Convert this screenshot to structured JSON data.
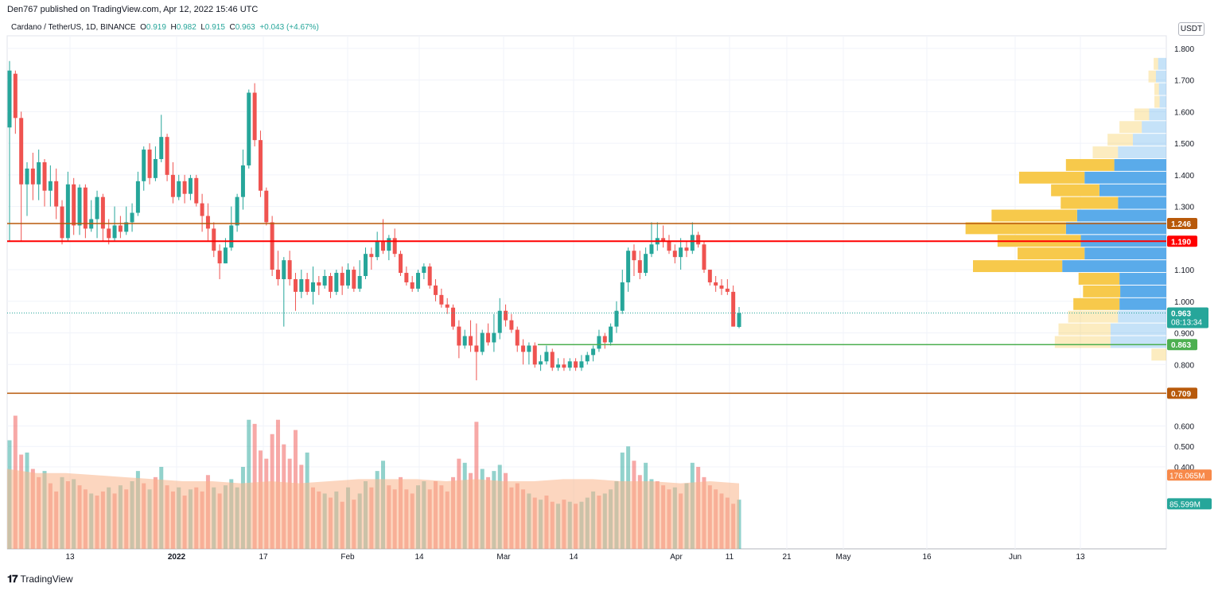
{
  "header": {
    "published": "Den767 published on TradingView.com, Apr 12, 2022 15:46 UTC",
    "symbol": "Cardano / TetherUS, 1D, BINANCE",
    "open_label": "O",
    "open": "0.919",
    "high_label": "H",
    "high": "0.982",
    "low_label": "L",
    "low": "0.915",
    "close_label": "C",
    "close": "0.963",
    "change": "+0.043 (+4.67%)"
  },
  "footer": {
    "brand": "TradingView"
  },
  "price_scale": {
    "unit": "USDT"
  },
  "colors": {
    "up": "#26a69a",
    "down": "#ef5350",
    "level_orange": "#b8590a",
    "level_red": "#ff0000",
    "level_green": "#4caf50",
    "vp_up": "#f7c94b",
    "vp_down": "#5aabea",
    "volume_ma": "#f9b58a"
  },
  "chart_data": {
    "type": "candlestick",
    "x_ticks": [
      "13",
      "2022",
      "17",
      "Feb",
      "14",
      "Mar",
      "14",
      "Apr",
      "11",
      "21",
      "May",
      "16",
      "Jun",
      "13"
    ],
    "y_ticks": [
      "1.800",
      "1.700",
      "1.600",
      "1.500",
      "1.400",
      "1.300",
      "1.100",
      "1.000",
      "0.900",
      "0.800"
    ],
    "volume_ticks": [
      "0.600",
      "0.500",
      "0.400"
    ],
    "ylim": [
      0.695,
      1.84
    ],
    "candles": [
      [
        1.55,
        1.73,
        1.76,
        1.19
      ],
      [
        1.72,
        1.58,
        1.73,
        1.53
      ],
      [
        1.58,
        1.37,
        1.6,
        1.19
      ],
      [
        1.37,
        1.42,
        1.44,
        1.27
      ],
      [
        1.42,
        1.37,
        1.47,
        1.32
      ],
      [
        1.37,
        1.44,
        1.48,
        1.32
      ],
      [
        1.44,
        1.35,
        1.45,
        1.3
      ],
      [
        1.35,
        1.38,
        1.43,
        1.3
      ],
      [
        1.38,
        1.3,
        1.42,
        1.26
      ],
      [
        1.3,
        1.2,
        1.32,
        1.18
      ],
      [
        1.2,
        1.37,
        1.41,
        1.19
      ],
      [
        1.37,
        1.24,
        1.39,
        1.21
      ],
      [
        1.24,
        1.36,
        1.37,
        1.21
      ],
      [
        1.36,
        1.23,
        1.37,
        1.2
      ],
      [
        1.23,
        1.26,
        1.32,
        1.22
      ],
      [
        1.26,
        1.33,
        1.35,
        1.2
      ],
      [
        1.33,
        1.23,
        1.34,
        1.19
      ],
      [
        1.23,
        1.2,
        1.26,
        1.18
      ],
      [
        1.2,
        1.24,
        1.3,
        1.19
      ],
      [
        1.24,
        1.22,
        1.27,
        1.2
      ],
      [
        1.22,
        1.25,
        1.3,
        1.21
      ],
      [
        1.25,
        1.28,
        1.31,
        1.22
      ],
      [
        1.28,
        1.38,
        1.41,
        1.27
      ],
      [
        1.38,
        1.48,
        1.49,
        1.35
      ],
      [
        1.48,
        1.39,
        1.5,
        1.37
      ],
      [
        1.39,
        1.45,
        1.49,
        1.38
      ],
      [
        1.45,
        1.52,
        1.59,
        1.44
      ],
      [
        1.52,
        1.4,
        1.53,
        1.38
      ],
      [
        1.4,
        1.33,
        1.44,
        1.31
      ],
      [
        1.33,
        1.38,
        1.4,
        1.32
      ],
      [
        1.38,
        1.34,
        1.4,
        1.31
      ],
      [
        1.34,
        1.39,
        1.4,
        1.32
      ],
      [
        1.39,
        1.31,
        1.4,
        1.3
      ],
      [
        1.31,
        1.27,
        1.34,
        1.22
      ],
      [
        1.27,
        1.23,
        1.31,
        1.19
      ],
      [
        1.23,
        1.16,
        1.25,
        1.14
      ],
      [
        1.16,
        1.12,
        1.18,
        1.07
      ],
      [
        1.12,
        1.17,
        1.2,
        1.12
      ],
      [
        1.17,
        1.24,
        1.3,
        1.16
      ],
      [
        1.24,
        1.33,
        1.34,
        1.22
      ],
      [
        1.33,
        1.43,
        1.48,
        1.29
      ],
      [
        1.43,
        1.66,
        1.67,
        1.42
      ],
      [
        1.66,
        1.51,
        1.69,
        1.49
      ],
      [
        1.51,
        1.35,
        1.54,
        1.33
      ],
      [
        1.35,
        1.25,
        1.36,
        1.24
      ],
      [
        1.25,
        1.1,
        1.27,
        1.08
      ],
      [
        1.1,
        1.07,
        1.16,
        1.05
      ],
      [
        1.07,
        1.13,
        1.14,
        0.92
      ],
      [
        1.13,
        1.07,
        1.16,
        1.05
      ],
      [
        1.07,
        1.03,
        1.09,
        0.97
      ],
      [
        1.03,
        1.07,
        1.1,
        1.01
      ],
      [
        1.07,
        1.03,
        1.09,
        1.02
      ],
      [
        1.03,
        1.06,
        1.11,
        0.99
      ],
      [
        1.06,
        1.05,
        1.08,
        1.02
      ],
      [
        1.05,
        1.08,
        1.1,
        1.04
      ],
      [
        1.08,
        1.03,
        1.09,
        1.01
      ],
      [
        1.03,
        1.09,
        1.1,
        1.02
      ],
      [
        1.09,
        1.05,
        1.11,
        1.02
      ],
      [
        1.05,
        1.1,
        1.12,
        1.04
      ],
      [
        1.1,
        1.04,
        1.11,
        1.03
      ],
      [
        1.04,
        1.08,
        1.13,
        1.03
      ],
      [
        1.08,
        1.15,
        1.17,
        1.07
      ],
      [
        1.15,
        1.14,
        1.17,
        1.1
      ],
      [
        1.14,
        1.19,
        1.22,
        1.13
      ],
      [
        1.19,
        1.16,
        1.26,
        1.15
      ],
      [
        1.16,
        1.2,
        1.21,
        1.13
      ],
      [
        1.2,
        1.15,
        1.23,
        1.14
      ],
      [
        1.15,
        1.09,
        1.16,
        1.08
      ],
      [
        1.09,
        1.06,
        1.11,
        1.05
      ],
      [
        1.06,
        1.04,
        1.08,
        1.03
      ],
      [
        1.04,
        1.09,
        1.1,
        1.03
      ],
      [
        1.09,
        1.11,
        1.12,
        1.07
      ],
      [
        1.11,
        1.05,
        1.12,
        1.04
      ],
      [
        1.05,
        1.02,
        1.07,
        1.0
      ],
      [
        1.02,
        0.99,
        1.04,
        0.98
      ],
      [
        0.99,
        0.98,
        1.01,
        0.96
      ],
      [
        0.98,
        0.92,
        0.99,
        0.91
      ],
      [
        0.92,
        0.86,
        0.94,
        0.82
      ],
      [
        0.86,
        0.89,
        0.91,
        0.85
      ],
      [
        0.89,
        0.86,
        0.94,
        0.84
      ],
      [
        0.86,
        0.84,
        0.93,
        0.75
      ],
      [
        0.84,
        0.9,
        0.91,
        0.83
      ],
      [
        0.9,
        0.87,
        0.93,
        0.86
      ],
      [
        0.87,
        0.9,
        0.96,
        0.84
      ],
      [
        0.9,
        0.97,
        1.01,
        0.88
      ],
      [
        0.97,
        0.94,
        0.99,
        0.92
      ],
      [
        0.94,
        0.91,
        0.96,
        0.9
      ],
      [
        0.91,
        0.86,
        0.92,
        0.84
      ],
      [
        0.86,
        0.84,
        0.88,
        0.8
      ],
      [
        0.84,
        0.86,
        0.87,
        0.8
      ],
      [
        0.86,
        0.8,
        0.87,
        0.79
      ],
      [
        0.8,
        0.81,
        0.83,
        0.78
      ],
      [
        0.81,
        0.84,
        0.86,
        0.8
      ],
      [
        0.84,
        0.79,
        0.85,
        0.78
      ],
      [
        0.79,
        0.8,
        0.82,
        0.78
      ],
      [
        0.8,
        0.79,
        0.82,
        0.78
      ],
      [
        0.79,
        0.81,
        0.82,
        0.78
      ],
      [
        0.81,
        0.79,
        0.82,
        0.78
      ],
      [
        0.79,
        0.81,
        0.83,
        0.78
      ],
      [
        0.81,
        0.83,
        0.84,
        0.8
      ],
      [
        0.83,
        0.85,
        0.86,
        0.81
      ],
      [
        0.85,
        0.89,
        0.91,
        0.84
      ],
      [
        0.89,
        0.87,
        0.9,
        0.85
      ],
      [
        0.87,
        0.92,
        0.93,
        0.86
      ],
      [
        0.92,
        0.97,
        1.0,
        0.9
      ],
      [
        0.97,
        1.06,
        1.1,
        0.96
      ],
      [
        1.06,
        1.16,
        1.17,
        1.03
      ],
      [
        1.16,
        1.13,
        1.18,
        1.08
      ],
      [
        1.13,
        1.09,
        1.16,
        1.07
      ],
      [
        1.09,
        1.15,
        1.17,
        1.08
      ],
      [
        1.15,
        1.18,
        1.25,
        1.14
      ],
      [
        1.18,
        1.2,
        1.25,
        1.16
      ],
      [
        1.2,
        1.19,
        1.24,
        1.17
      ],
      [
        1.19,
        1.16,
        1.21,
        1.15
      ],
      [
        1.16,
        1.14,
        1.18,
        1.12
      ],
      [
        1.14,
        1.17,
        1.2,
        1.1
      ],
      [
        1.17,
        1.16,
        1.19,
        1.14
      ],
      [
        1.16,
        1.21,
        1.25,
        1.15
      ],
      [
        1.21,
        1.18,
        1.22,
        1.17
      ],
      [
        1.18,
        1.1,
        1.19,
        1.09
      ],
      [
        1.1,
        1.06,
        1.1,
        1.05
      ],
      [
        1.06,
        1.05,
        1.08,
        1.03
      ],
      [
        1.05,
        1.04,
        1.07,
        1.02
      ],
      [
        1.04,
        1.03,
        1.07,
        1.02
      ],
      [
        1.03,
        0.92,
        1.05,
        0.92
      ],
      [
        0.919,
        0.963,
        0.982,
        0.915
      ]
    ],
    "volumes": [
      [
        0.53,
        1
      ],
      [
        0.65,
        0
      ],
      [
        0.46,
        0
      ],
      [
        0.47,
        1
      ],
      [
        0.39,
        0
      ],
      [
        0.35,
        0
      ],
      [
        0.38,
        1
      ],
      [
        0.32,
        0
      ],
      [
        0.28,
        0
      ],
      [
        0.35,
        1
      ],
      [
        0.33,
        0
      ],
      [
        0.34,
        1
      ],
      [
        0.31,
        0
      ],
      [
        0.29,
        0
      ],
      [
        0.27,
        1
      ],
      [
        0.26,
        0
      ],
      [
        0.28,
        0
      ],
      [
        0.3,
        1
      ],
      [
        0.27,
        0
      ],
      [
        0.31,
        1
      ],
      [
        0.29,
        0
      ],
      [
        0.33,
        1
      ],
      [
        0.38,
        1
      ],
      [
        0.32,
        0
      ],
      [
        0.29,
        1
      ],
      [
        0.35,
        0
      ],
      [
        0.4,
        1
      ],
      [
        0.31,
        0
      ],
      [
        0.28,
        0
      ],
      [
        0.3,
        1
      ],
      [
        0.26,
        0
      ],
      [
        0.29,
        1
      ],
      [
        0.3,
        0
      ],
      [
        0.28,
        0
      ],
      [
        0.36,
        0
      ],
      [
        0.3,
        1
      ],
      [
        0.27,
        0
      ],
      [
        0.31,
        1
      ],
      [
        0.34,
        1
      ],
      [
        0.3,
        1
      ],
      [
        0.4,
        1
      ],
      [
        0.63,
        1
      ],
      [
        0.61,
        0
      ],
      [
        0.48,
        0
      ],
      [
        0.44,
        0
      ],
      [
        0.56,
        0
      ],
      [
        0.63,
        0
      ],
      [
        0.51,
        0
      ],
      [
        0.44,
        0
      ],
      [
        0.58,
        0
      ],
      [
        0.41,
        0
      ],
      [
        0.47,
        1
      ],
      [
        0.3,
        0
      ],
      [
        0.28,
        0
      ],
      [
        0.27,
        1
      ],
      [
        0.25,
        0
      ],
      [
        0.28,
        1
      ],
      [
        0.23,
        0
      ],
      [
        0.3,
        1
      ],
      [
        0.24,
        0
      ],
      [
        0.27,
        1
      ],
      [
        0.33,
        1
      ],
      [
        0.3,
        0
      ],
      [
        0.38,
        1
      ],
      [
        0.43,
        1
      ],
      [
        0.31,
        0
      ],
      [
        0.29,
        0
      ],
      [
        0.35,
        0
      ],
      [
        0.29,
        0
      ],
      [
        0.27,
        0
      ],
      [
        0.31,
        1
      ],
      [
        0.33,
        1
      ],
      [
        0.29,
        0
      ],
      [
        0.33,
        0
      ],
      [
        0.31,
        0
      ],
      [
        0.28,
        0
      ],
      [
        0.35,
        0
      ],
      [
        0.44,
        0
      ],
      [
        0.42,
        1
      ],
      [
        0.37,
        0
      ],
      [
        0.62,
        0
      ],
      [
        0.39,
        1
      ],
      [
        0.35,
        0
      ],
      [
        0.38,
        1
      ],
      [
        0.41,
        1
      ],
      [
        0.37,
        0
      ],
      [
        0.3,
        0
      ],
      [
        0.32,
        0
      ],
      [
        0.29,
        0
      ],
      [
        0.27,
        1
      ],
      [
        0.25,
        0
      ],
      [
        0.24,
        1
      ],
      [
        0.26,
        0
      ],
      [
        0.23,
        0
      ],
      [
        0.22,
        1
      ],
      [
        0.24,
        0
      ],
      [
        0.23,
        1
      ],
      [
        0.22,
        0
      ],
      [
        0.23,
        1
      ],
      [
        0.25,
        1
      ],
      [
        0.28,
        1
      ],
      [
        0.26,
        0
      ],
      [
        0.27,
        1
      ],
      [
        0.29,
        1
      ],
      [
        0.33,
        1
      ],
      [
        0.47,
        1
      ],
      [
        0.5,
        1
      ],
      [
        0.43,
        0
      ],
      [
        0.36,
        0
      ],
      [
        0.42,
        1
      ],
      [
        0.34,
        1
      ],
      [
        0.33,
        0
      ],
      [
        0.31,
        0
      ],
      [
        0.29,
        0
      ],
      [
        0.3,
        1
      ],
      [
        0.27,
        0
      ],
      [
        0.32,
        1
      ],
      [
        0.42,
        1
      ],
      [
        0.4,
        0
      ],
      [
        0.35,
        0
      ],
      [
        0.31,
        0
      ],
      [
        0.29,
        0
      ],
      [
        0.27,
        0
      ],
      [
        0.25,
        0
      ],
      [
        0.22,
        0
      ],
      [
        0.24,
        1
      ]
    ],
    "volume_ma": [
      0.39,
      0.37,
      0.37,
      0.36,
      0.35,
      0.34,
      0.33,
      0.33,
      0.32,
      0.33,
      0.32,
      0.33,
      0.34,
      0.34,
      0.34,
      0.33,
      0.34,
      0.33,
      0.33,
      0.34,
      0.34,
      0.33,
      0.33,
      0.32,
      0.33,
      0.32
    ],
    "volume_profile": [
      {
        "price": 1.75,
        "up": 0.006,
        "down": 0.011
      },
      {
        "price": 1.71,
        "up": 0.01,
        "down": 0.014
      },
      {
        "price": 1.67,
        "up": 0.006,
        "down": 0.01
      },
      {
        "price": 1.63,
        "up": 0.007,
        "down": 0.009
      },
      {
        "price": 1.59,
        "up": 0.02,
        "down": 0.023
      },
      {
        "price": 1.55,
        "up": 0.03,
        "down": 0.033
      },
      {
        "price": 1.51,
        "up": 0.034,
        "down": 0.045
      },
      {
        "price": 1.47,
        "up": 0.034,
        "down": 0.065
      },
      {
        "price": 1.43,
        "up": 0.065,
        "down": 0.07
      },
      {
        "price": 1.39,
        "up": 0.088,
        "down": 0.11
      },
      {
        "price": 1.35,
        "up": 0.065,
        "down": 0.09
      },
      {
        "price": 1.31,
        "up": 0.077,
        "down": 0.065
      },
      {
        "price": 1.27,
        "up": 0.115,
        "down": 0.12
      },
      {
        "price": 1.23,
        "up": 0.135,
        "down": 0.135
      },
      {
        "price": 1.19,
        "up": 0.112,
        "down": 0.115
      },
      {
        "price": 1.15,
        "up": 0.09,
        "down": 0.11
      },
      {
        "price": 1.11,
        "up": 0.12,
        "down": 0.14
      },
      {
        "price": 1.07,
        "up": 0.055,
        "down": 0.063
      },
      {
        "price": 1.03,
        "up": 0.05,
        "down": 0.062
      },
      {
        "price": 0.99,
        "up": 0.062,
        "down": 0.063
      },
      {
        "price": 0.95,
        "up": 0.067,
        "down": 0.065
      },
      {
        "price": 0.91,
        "up": 0.07,
        "down": 0.075
      },
      {
        "price": 0.87,
        "up": 0.075,
        "down": 0.075
      },
      {
        "price": 0.83,
        "up": 0.02,
        "down": 0.0
      }
    ],
    "levels": [
      {
        "price": 1.246,
        "label": "1.246",
        "color": "#b8590a"
      },
      {
        "price": 1.19,
        "label": "1.190",
        "color": "#ff0000"
      },
      {
        "price": 0.863,
        "label": "0.863",
        "color": "#4caf50"
      },
      {
        "price": 0.709,
        "label": "0.709",
        "color": "#b8590a"
      }
    ],
    "last_price": {
      "price": 0.963,
      "label": "0.963",
      "countdown": "08:13:34"
    },
    "volume_labels": [
      {
        "label": "176.065M",
        "value": 0.36,
        "color": "#f7894a"
      },
      {
        "label": "85.599M",
        "value": 0.22,
        "color": "#26a69a"
      }
    ]
  }
}
